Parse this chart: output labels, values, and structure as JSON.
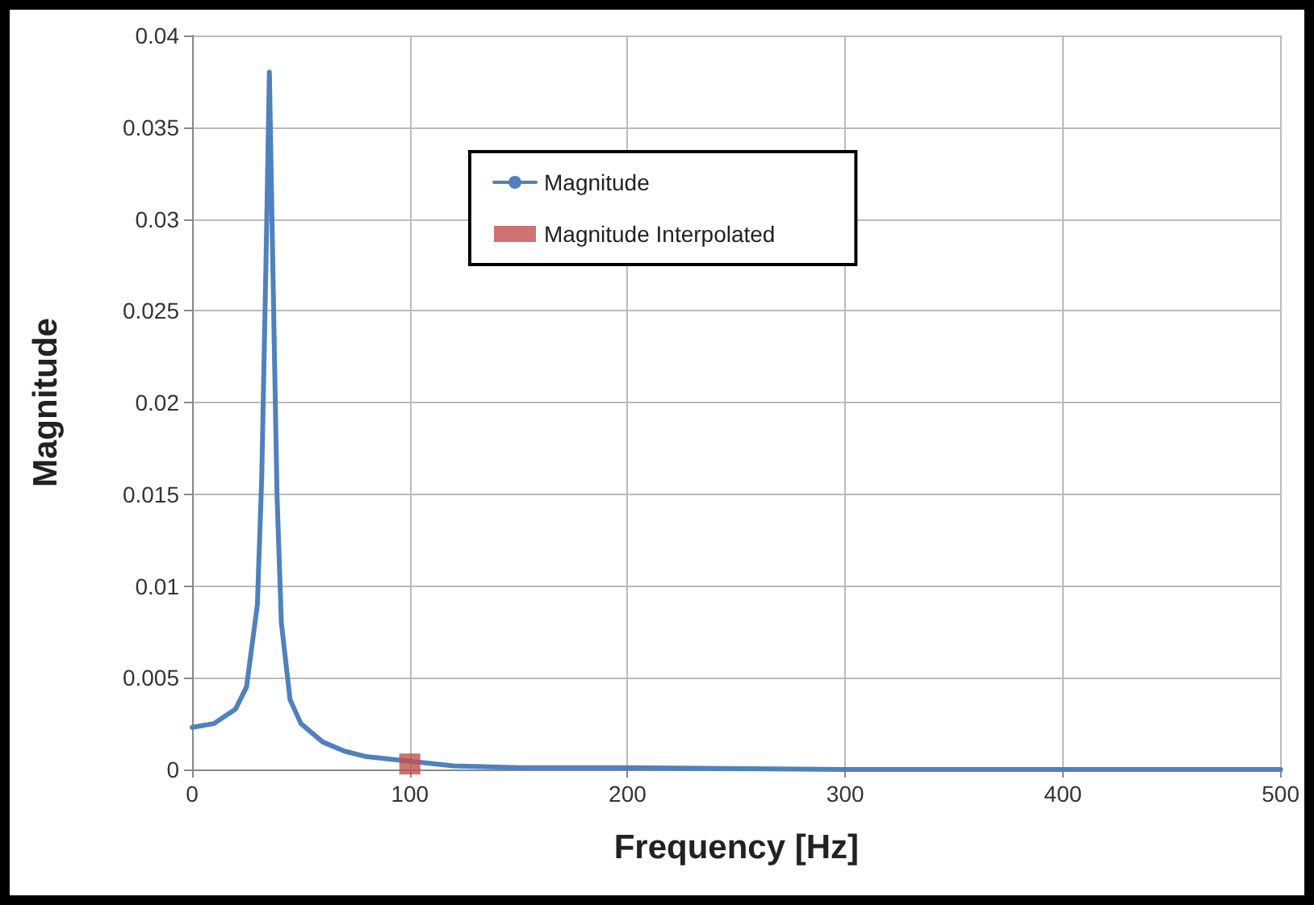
{
  "chart_data": {
    "type": "line",
    "xlabel": "Frequency [Hz]",
    "ylabel": "Magnitude",
    "xlim": [
      0,
      500
    ],
    "xticks": [
      0,
      100,
      200,
      300,
      400,
      500
    ],
    "ylim": [
      0,
      0.04
    ],
    "yticks": [
      0,
      0.005,
      0.01,
      0.015,
      0.02,
      0.025,
      0.03,
      0.035,
      0.04
    ],
    "grid": true,
    "legend": "top",
    "marker": "none",
    "series": [
      {
        "name": "Magnitude",
        "color": "#4f81bd",
        "x": [
          0,
          10,
          20,
          25,
          30,
          32,
          34,
          35.5,
          37,
          39,
          41,
          45,
          50,
          60,
          70,
          80,
          120,
          150,
          200,
          300,
          400,
          500
        ],
        "values": [
          0.0023,
          0.0025,
          0.0033,
          0.0045,
          0.009,
          0.016,
          0.028,
          0.038,
          0.028,
          0.015,
          0.008,
          0.0038,
          0.0025,
          0.0015,
          0.001,
          0.0007,
          0.0002,
          0.0001,
          0.0001,
          0,
          0,
          0
        ]
      },
      {
        "name": "Magnitude Interpolated",
        "type": "scatter",
        "marker": "square",
        "color": "#c0504d",
        "x": [
          100
        ],
        "values": [
          0.0003
        ]
      }
    ]
  }
}
